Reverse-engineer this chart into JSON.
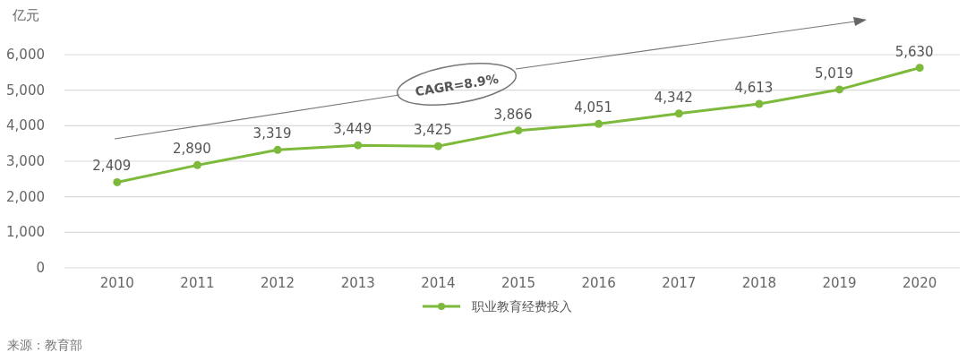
{
  "chart_data": {
    "type": "line",
    "ylabel": "亿元",
    "categories": [
      "2010",
      "2011",
      "2012",
      "2013",
      "2014",
      "2015",
      "2016",
      "2017",
      "2018",
      "2019",
      "2020"
    ],
    "series": [
      {
        "name": "职业教育经费投入",
        "color": "#7dba3c",
        "values": [
          2409,
          2890,
          3319,
          3449,
          3425,
          3866,
          4051,
          4342,
          4613,
          5019,
          5630
        ]
      }
    ],
    "value_labels": [
      "2,409",
      "2,890",
      "3,319",
      "3,449",
      "3,425",
      "3,866",
      "4,051",
      "4,342",
      "4,613",
      "5,019",
      "5,630"
    ],
    "ylim": [
      0,
      6000
    ],
    "yticks": [
      {
        "value": 0,
        "label": "0"
      },
      {
        "value": 1000,
        "label": "1,000"
      },
      {
        "value": 2000,
        "label": "2,000"
      },
      {
        "value": 3000,
        "label": "3,000"
      },
      {
        "value": 4000,
        "label": "4,000"
      },
      {
        "value": 5000,
        "label": "5,000"
      },
      {
        "value": 6000,
        "label": "6,000"
      }
    ],
    "grid": "y",
    "legend": "bottom",
    "marker": "circle",
    "line_style": "solid",
    "annotations": [
      "CAGR=8.9%",
      "来源：教育部"
    ]
  }
}
